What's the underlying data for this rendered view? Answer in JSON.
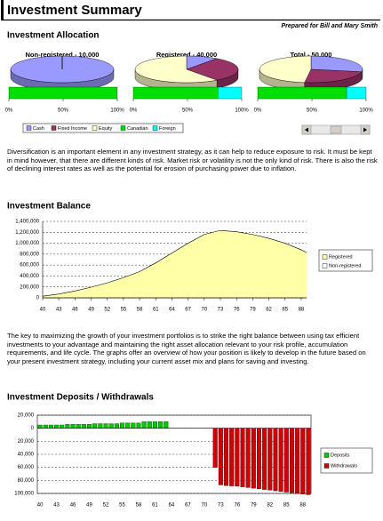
{
  "header": {
    "title": "Investment Summary",
    "subtitle": "Prepared for Bill and Mary Smith"
  },
  "sections": [
    {
      "title": "Investment Allocation"
    },
    {
      "title": "Investment Balance"
    },
    {
      "title": "Investment Deposits / Withdrawals"
    }
  ],
  "paragraphs": [
    "Diversification is an important element in any investment strategy, as it can help to reduce exposure to risk.  It must be kept in mind however, that there are different kinds of risk.  Market risk or volatility is not the only kind of risk.  There is also the risk of declining interest rates as well as the potential for erosion of purchasing power due to inflation.",
    "The key to maximizing the growth of your investment portfolios is to strike the right balance between using tax efficient investments to your advantage and maintaining the right asset allocation relevant to your risk profile, accumulation requirements, and life cycle. The graphs offer an overview of how your position is likely to develop in the future based on your present investment strategy, including your current asset mix and plans for saving and investing."
  ],
  "chart_data": [
    {
      "type": "pie",
      "categories": [
        "Cash",
        "Fixed Income",
        "Equity"
      ],
      "colors": [
        "#9999ff",
        "#993366",
        "#ffffcc"
      ],
      "regions": [
        "Canadian",
        "Foreign"
      ],
      "region_colors": [
        "#00e000",
        "#00ffff"
      ],
      "panels": [
        {
          "title": "Non-registered - 10,000",
          "values": [
            100,
            0,
            0
          ],
          "region_values": [
            100,
            0
          ]
        },
        {
          "title": "Registered - 40,000",
          "values": [
            10,
            30,
            60
          ],
          "region_values": [
            78,
            22
          ]
        },
        {
          "title": "Total - 50,000",
          "values": [
            28,
            24,
            48
          ],
          "region_values": [
            82,
            18
          ]
        }
      ],
      "xlim": [
        0,
        100
      ],
      "xticks": [
        {
          "value": 0,
          "label": "0%"
        },
        {
          "value": 50,
          "label": "50%"
        },
        {
          "value": 100,
          "label": "100%"
        }
      ]
    },
    {
      "type": "area",
      "x": [
        40,
        43,
        46,
        49,
        52,
        55,
        58,
        61,
        64,
        67,
        70,
        73,
        76,
        79,
        82,
        85,
        88,
        89
      ],
      "series": [
        {
          "name": "Registered",
          "color": "#ffffa8",
          "values": [
            30000,
            70000,
            125000,
            195000,
            275000,
            370000,
            480000,
            640000,
            820000,
            1000000,
            1160000,
            1235000,
            1210000,
            1160000,
            1090000,
            1000000,
            880000,
            830000
          ]
        },
        {
          "name": "Non-registered",
          "color": "#ffffff",
          "values": [
            0,
            0,
            0,
            0,
            0,
            0,
            0,
            0,
            0,
            0,
            0,
            0,
            0,
            0,
            0,
            0,
            0,
            0
          ]
        }
      ],
      "xlim": [
        40,
        89
      ],
      "xticks": [
        40,
        43,
        46,
        49,
        52,
        55,
        58,
        61,
        64,
        67,
        70,
        73,
        76,
        79,
        82,
        85,
        88
      ],
      "ylim": [
        0,
        1400000
      ],
      "yticks": [
        0,
        {
          "value": 200000,
          "label": "200,000"
        },
        {
          "value": 400000,
          "label": "400,000"
        },
        {
          "value": 600000,
          "label": "600,000"
        },
        {
          "value": 800000,
          "label": "800,000"
        },
        {
          "value": 1000000,
          "label": "1,000,000"
        },
        {
          "value": 1200000,
          "label": "1,200,000"
        },
        {
          "value": 1400000,
          "label": "1,400,000"
        }
      ],
      "grid": true
    },
    {
      "type": "bar",
      "categories": [
        40,
        null,
        null,
        43,
        null,
        null,
        46,
        null,
        null,
        49,
        null,
        null,
        52,
        null,
        null,
        55,
        null,
        null,
        58,
        null,
        null,
        61,
        null,
        null,
        64,
        null,
        null,
        67,
        null,
        null,
        70,
        null,
        null,
        73,
        null,
        null,
        76,
        null,
        null,
        79,
        null,
        null,
        82,
        null,
        null,
        85,
        null,
        null,
        88,
        null
      ],
      "series": [
        {
          "name": "Deposits",
          "color": "#00c800",
          "values": [
            5000,
            5000,
            5000,
            5000,
            5000,
            6000,
            6000,
            6000,
            6000,
            6000,
            7000,
            7000,
            7000,
            7000,
            7000,
            8000,
            8000,
            8000,
            8000,
            10000,
            10000,
            10000,
            10000,
            10000,
            0,
            0,
            0,
            0,
            0,
            0,
            0,
            0,
            0,
            0,
            0,
            0,
            0,
            0,
            0,
            0,
            0,
            0,
            0,
            0,
            0,
            0,
            0,
            0,
            0,
            0
          ]
        },
        {
          "name": "Withdrawals",
          "color": "#d00000",
          "values": [
            0,
            0,
            0,
            0,
            0,
            0,
            0,
            0,
            0,
            0,
            0,
            0,
            0,
            0,
            0,
            0,
            0,
            0,
            0,
            0,
            0,
            0,
            0,
            0,
            0,
            0,
            0,
            0,
            0,
            0,
            0,
            0,
            -60000,
            -87000,
            -88000,
            -88500,
            -89000,
            -90000,
            -91000,
            -92000,
            -93000,
            -94000,
            -95000,
            -96000,
            -97000,
            -98000,
            -99000,
            -100000,
            -101000,
            -102000
          ]
        }
      ],
      "ylim": [
        -100000,
        20000
      ],
      "yticks": [
        {
          "value": 20000,
          "label": "20,000"
        },
        0,
        {
          "value": -20000,
          "label": "20,000"
        },
        {
          "value": -40000,
          "label": "40,000"
        },
        {
          "value": -60000,
          "label": "60,000"
        },
        {
          "value": -80000,
          "label": "80,000"
        },
        {
          "value": -100000,
          "label": "100,000"
        }
      ],
      "grid": true
    }
  ]
}
